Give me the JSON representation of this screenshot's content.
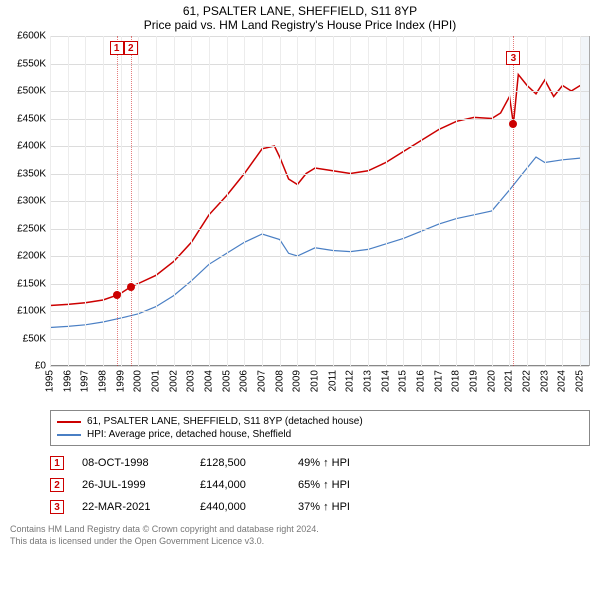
{
  "title": {
    "line1": "61, PSALTER LANE, SHEFFIELD, S11 8YP",
    "line2": "Price paid vs. HM Land Registry's House Price Index (HPI)"
  },
  "chart": {
    "type": "line",
    "background_color": "#ffffff",
    "grid_color": "#dcdcdc",
    "xlim": [
      1995,
      2025.5
    ],
    "ylim": [
      0,
      600
    ],
    "ytick_step": 50,
    "ytick_prefix": "£",
    "ytick_suffix": "K",
    "xticks": [
      1995,
      1996,
      1997,
      1998,
      1999,
      2000,
      2001,
      2002,
      2003,
      2004,
      2005,
      2006,
      2007,
      2008,
      2009,
      2010,
      2011,
      2012,
      2013,
      2014,
      2015,
      2016,
      2017,
      2018,
      2019,
      2020,
      2021,
      2022,
      2023,
      2024,
      2025
    ],
    "shade_from": 2025,
    "series": [
      {
        "label": "61, PSALTER LANE, SHEFFIELD, S11 8YP (detached house)",
        "color": "#cc0000",
        "width": 1.5,
        "points": [
          [
            1995,
            110
          ],
          [
            1996,
            112
          ],
          [
            1997,
            115
          ],
          [
            1998,
            120
          ],
          [
            1998.77,
            128.5
          ],
          [
            1999,
            132
          ],
          [
            1999.57,
            144
          ],
          [
            2000,
            150
          ],
          [
            2001,
            165
          ],
          [
            2002,
            190
          ],
          [
            2003,
            225
          ],
          [
            2004,
            275
          ],
          [
            2005,
            310
          ],
          [
            2006,
            350
          ],
          [
            2007,
            395
          ],
          [
            2007.7,
            400
          ],
          [
            2008,
            380
          ],
          [
            2008.5,
            340
          ],
          [
            2009,
            330
          ],
          [
            2009.5,
            350
          ],
          [
            2010,
            360
          ],
          [
            2011,
            355
          ],
          [
            2012,
            350
          ],
          [
            2013,
            355
          ],
          [
            2014,
            370
          ],
          [
            2015,
            390
          ],
          [
            2016,
            410
          ],
          [
            2017,
            430
          ],
          [
            2018,
            445
          ],
          [
            2019,
            452
          ],
          [
            2020,
            450
          ],
          [
            2020.5,
            460
          ],
          [
            2021,
            490
          ],
          [
            2021.22,
            440
          ],
          [
            2021.5,
            530
          ],
          [
            2022,
            510
          ],
          [
            2022.5,
            495
          ],
          [
            2023,
            520
          ],
          [
            2023.5,
            490
          ],
          [
            2024,
            510
          ],
          [
            2024.5,
            500
          ],
          [
            2025,
            510
          ]
        ]
      },
      {
        "label": "HPI: Average price, detached house, Sheffield",
        "color": "#4a7fc4",
        "width": 1.2,
        "points": [
          [
            1995,
            70
          ],
          [
            1996,
            72
          ],
          [
            1997,
            75
          ],
          [
            1998,
            80
          ],
          [
            1999,
            87
          ],
          [
            2000,
            95
          ],
          [
            2001,
            108
          ],
          [
            2002,
            128
          ],
          [
            2003,
            155
          ],
          [
            2004,
            185
          ],
          [
            2005,
            205
          ],
          [
            2006,
            225
          ],
          [
            2007,
            240
          ],
          [
            2008,
            230
          ],
          [
            2008.5,
            205
          ],
          [
            2009,
            200
          ],
          [
            2010,
            215
          ],
          [
            2011,
            210
          ],
          [
            2012,
            208
          ],
          [
            2013,
            212
          ],
          [
            2014,
            222
          ],
          [
            2015,
            232
          ],
          [
            2016,
            245
          ],
          [
            2017,
            258
          ],
          [
            2018,
            268
          ],
          [
            2019,
            275
          ],
          [
            2020,
            282
          ],
          [
            2021,
            320
          ],
          [
            2022,
            360
          ],
          [
            2022.5,
            380
          ],
          [
            2023,
            370
          ],
          [
            2024,
            375
          ],
          [
            2025,
            378
          ]
        ]
      }
    ],
    "markers": [
      {
        "id": "1",
        "x": 1998.77,
        "y": 128.5,
        "box_top": 5
      },
      {
        "id": "2",
        "x": 1999.57,
        "y": 144,
        "box_top": 5
      },
      {
        "id": "3",
        "x": 2021.22,
        "y": 440,
        "box_top": 15
      }
    ]
  },
  "legend": [
    {
      "color": "#cc0000",
      "label": "61, PSALTER LANE, SHEFFIELD, S11 8YP (detached house)"
    },
    {
      "color": "#4a7fc4",
      "label": "HPI: Average price, detached house, Sheffield"
    }
  ],
  "events": [
    {
      "id": "1",
      "date": "08-OCT-1998",
      "price": "£128,500",
      "diff": "49% ↑ HPI"
    },
    {
      "id": "2",
      "date": "26-JUL-1999",
      "price": "£144,000",
      "diff": "65% ↑ HPI"
    },
    {
      "id": "3",
      "date": "22-MAR-2021",
      "price": "£440,000",
      "diff": "37% ↑ HPI"
    }
  ],
  "footer": {
    "line1": "Contains HM Land Registry data © Crown copyright and database right 2024.",
    "line2": "This data is licensed under the Open Government Licence v3.0."
  }
}
